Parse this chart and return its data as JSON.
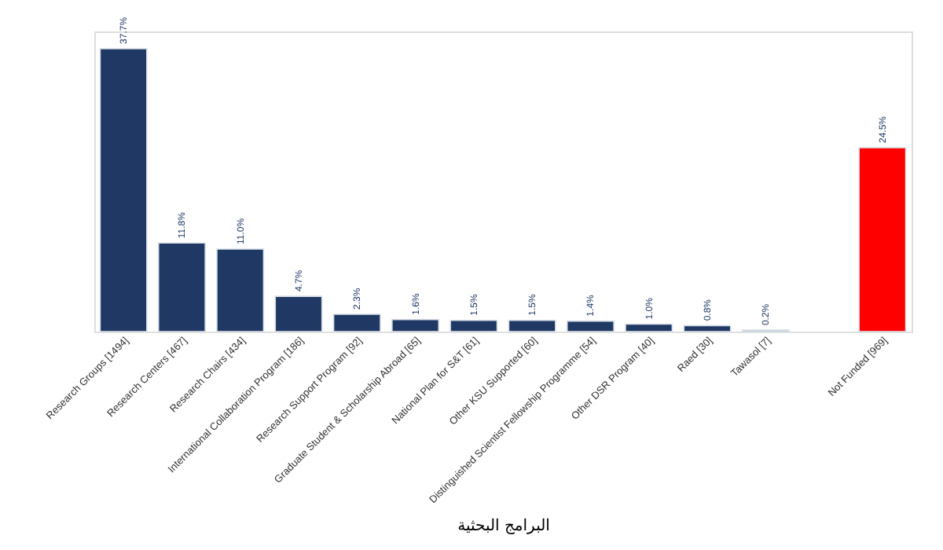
{
  "chart_data": {
    "type": "bar",
    "xlabel": "البرامج البحثية",
    "categories": [
      "Research Groups [1494]",
      "Research Centers [467]",
      "Research Chairs [434]",
      "International Collaboration Program [186]",
      "Research Support Program [92]",
      "Graduate Student & Scholarship Abroad [65]",
      "National Plan for S&T [61]",
      "Other KSU Supported [60]",
      "Distinguished Scientist Fellowship Programme [54]",
      "Other DSR Program [40]",
      "Raed [30]",
      "Tawasol [7]",
      null,
      "Not Funded [969]"
    ],
    "values": [
      37.7,
      11.8,
      11.0,
      4.7,
      2.3,
      1.6,
      1.5,
      1.5,
      1.4,
      1.0,
      0.8,
      0.2,
      null,
      24.5
    ],
    "value_labels": [
      "37.7%",
      "11.8%",
      "11.0%",
      "4.7%",
      "2.3%",
      "1.6%",
      "1.5%",
      "1.5%",
      "1.4%",
      "1.0%",
      "0.8%",
      "0.2%",
      null,
      "24.5%"
    ],
    "colors": [
      "#1f3864",
      "#1f3864",
      "#1f3864",
      "#1f3864",
      "#1f3864",
      "#1f3864",
      "#1f3864",
      "#1f3864",
      "#1f3864",
      "#1f3864",
      "#1f3864",
      "#8497b0",
      "#1f3864",
      "#ff0000"
    ],
    "grid": false,
    "tick_labels": "x"
  }
}
